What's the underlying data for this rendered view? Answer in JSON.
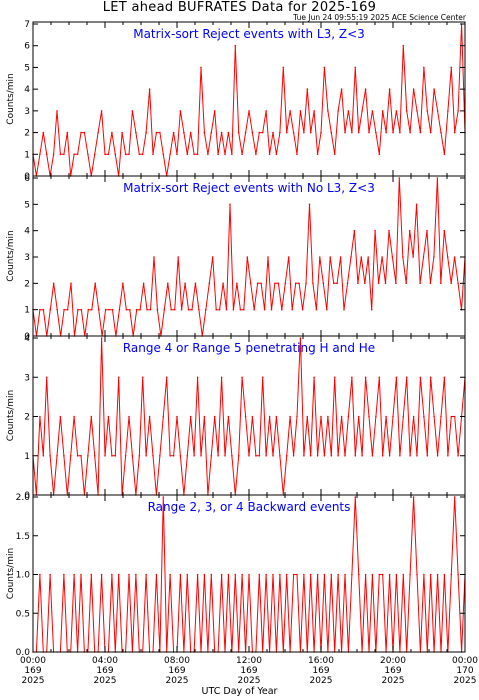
{
  "header": {
    "title": "LET ahead BUFRATES Data for 2025-169",
    "timestamp": "Tue Jun 24 09:55:19 2025 ACE Science Center"
  },
  "colors": {
    "data": "#ff0000",
    "panel_title": "#0000ff",
    "axes": "#000000"
  },
  "x_axis": {
    "label": "UTC Day of Year",
    "ticks": [
      {
        "time": "00:00",
        "doy": "169",
        "year": "2025"
      },
      {
        "time": "04:00",
        "doy": "169",
        "year": "2025"
      },
      {
        "time": "08:00",
        "doy": "169",
        "year": "2025"
      },
      {
        "time": "12:00",
        "doy": "169",
        "year": "2025"
      },
      {
        "time": "16:00",
        "doy": "169",
        "year": "2025"
      },
      {
        "time": "20:00",
        "doy": "169",
        "year": "2025"
      },
      {
        "time": "00:00",
        "doy": "170",
        "year": "2025"
      }
    ]
  },
  "chart_data": [
    {
      "type": "line",
      "title": "Matrix-sort Reject events with L3, Z<3",
      "ylabel": "Counts/min",
      "ylim": [
        0,
        7
      ],
      "yticks": [
        "0",
        "1",
        "2",
        "3",
        "4",
        "5",
        "6",
        "7"
      ],
      "xlim_hours": [
        0,
        24
      ],
      "series": [
        {
          "values": [
            1,
            0,
            1,
            2,
            1,
            0,
            1,
            3,
            1,
            1,
            2,
            0,
            1,
            1,
            2,
            2,
            1,
            0,
            1,
            2,
            3,
            1,
            1,
            2,
            1,
            0,
            2,
            1,
            1,
            3,
            2,
            1,
            1,
            2,
            4,
            1,
            2,
            2,
            1,
            0,
            1,
            2,
            1,
            3,
            2,
            1,
            2,
            1,
            1,
            5,
            2,
            1,
            2,
            3,
            1,
            2,
            1,
            2,
            1,
            6,
            2,
            1,
            2,
            3,
            2,
            1,
            2,
            2,
            3,
            1,
            2,
            1,
            2,
            5,
            2,
            3,
            2,
            1,
            3,
            2,
            4,
            2,
            3,
            1,
            2,
            5,
            3,
            2,
            1,
            3,
            4,
            2,
            3,
            2,
            5,
            2,
            3,
            4,
            2,
            3,
            2,
            1,
            3,
            2,
            4,
            2,
            3,
            2,
            6,
            3,
            2,
            4,
            3,
            2,
            5,
            3,
            2,
            4,
            3,
            2,
            1,
            3,
            5,
            2,
            3,
            7,
            2
          ]
        }
      ]
    },
    {
      "type": "line",
      "title": "Matrix-sort Reject events with No L3, Z<3",
      "ylabel": "Counts/min",
      "ylim": [
        0,
        6
      ],
      "yticks": [
        "0",
        "1",
        "2",
        "3",
        "4",
        "5",
        "6"
      ],
      "xlim_hours": [
        0,
        24
      ],
      "series": [
        {
          "values": [
            1,
            0,
            1,
            1,
            0,
            1,
            2,
            1,
            0,
            1,
            1,
            2,
            0,
            1,
            1,
            0,
            1,
            1,
            2,
            1,
            0,
            1,
            1,
            1,
            0,
            1,
            2,
            1,
            1,
            0,
            1,
            1,
            2,
            1,
            1,
            3,
            1,
            0,
            1,
            2,
            1,
            1,
            3,
            1,
            2,
            1,
            1,
            2,
            1,
            0,
            1,
            2,
            3,
            1,
            1,
            2,
            1,
            5,
            1,
            2,
            1,
            1,
            3,
            2,
            1,
            2,
            2,
            1,
            3,
            1,
            2,
            2,
            1,
            2,
            3,
            1,
            2,
            2,
            1,
            2,
            5,
            2,
            1,
            3,
            2,
            1,
            3,
            2,
            2,
            3,
            1,
            2,
            3,
            4,
            2,
            3,
            2,
            3,
            1,
            4,
            2,
            3,
            2,
            4,
            3,
            2,
            6,
            3,
            2,
            4,
            3,
            5,
            2,
            3,
            4,
            2,
            3,
            6,
            2,
            4,
            3,
            2,
            3,
            2,
            1,
            3
          ]
        }
      ]
    },
    {
      "type": "line",
      "title": "Range 4 or Range 5 penetrating H and He",
      "ylabel": "Counts/min",
      "ylim": [
        0,
        4
      ],
      "yticks": [
        "0",
        "1",
        "2",
        "3",
        "4"
      ],
      "xlim_hours": [
        0,
        24
      ],
      "series": [
        {
          "values": [
            1,
            0,
            2,
            1,
            3,
            1,
            0,
            1,
            2,
            1,
            0,
            1,
            2,
            1,
            1,
            0,
            1,
            2,
            1,
            0,
            4,
            1,
            2,
            1,
            1,
            3,
            0,
            1,
            2,
            1,
            0,
            1,
            3,
            1,
            2,
            1,
            0,
            1,
            2,
            3,
            1,
            1,
            2,
            1,
            0,
            1,
            2,
            1,
            3,
            1,
            2,
            0,
            1,
            2,
            1,
            3,
            1,
            2,
            1,
            0,
            1,
            3,
            2,
            1,
            2,
            1,
            1,
            3,
            1,
            2,
            1,
            2,
            1,
            0,
            1,
            2,
            1,
            2,
            4,
            1,
            2,
            1,
            3,
            1,
            2,
            1,
            2,
            1,
            3,
            1,
            2,
            1,
            2,
            3,
            1,
            2,
            1,
            3,
            2,
            1,
            2,
            3,
            1,
            2,
            1,
            2,
            3,
            1,
            2,
            3,
            1,
            2,
            1,
            3,
            2,
            1,
            3,
            2,
            1,
            2,
            3,
            1,
            2,
            2,
            1,
            2,
            3
          ]
        }
      ]
    },
    {
      "type": "line",
      "title": "Range 2, 3, or 4 Backward events",
      "ylabel": "Counts/min",
      "ylim": [
        0,
        2
      ],
      "yticks": [
        "0.0",
        "0.5",
        "1.0",
        "1.5",
        "2.0"
      ],
      "xlim_hours": [
        0,
        24
      ],
      "series": [
        {
          "values": [
            0,
            0,
            1,
            0,
            0,
            1,
            0,
            0,
            0,
            1,
            0,
            0,
            1,
            0,
            1,
            0,
            0,
            1,
            0,
            0,
            1,
            0,
            0,
            1,
            0,
            1,
            0,
            0,
            1,
            0,
            1,
            0,
            0,
            1,
            0,
            0,
            1,
            0,
            2,
            0,
            1,
            0,
            0,
            1,
            0,
            1,
            0,
            0,
            1,
            0,
            1,
            0,
            1,
            0,
            0,
            1,
            0,
            1,
            0,
            1,
            0,
            1,
            0,
            1,
            0,
            0,
            1,
            0,
            1,
            0,
            1,
            0,
            1,
            0,
            1,
            0,
            1,
            1,
            0,
            1,
            0,
            1,
            0,
            1,
            0,
            1,
            0,
            1,
            0,
            1,
            0,
            1,
            0,
            1,
            2,
            1,
            0,
            1,
            0,
            1,
            0,
            1,
            1,
            0,
            1,
            0,
            1,
            0,
            1,
            0,
            1,
            2,
            1,
            0,
            1,
            0,
            1,
            0,
            1,
            0,
            1,
            0,
            1,
            2,
            1,
            0,
            1
          ]
        }
      ]
    }
  ]
}
